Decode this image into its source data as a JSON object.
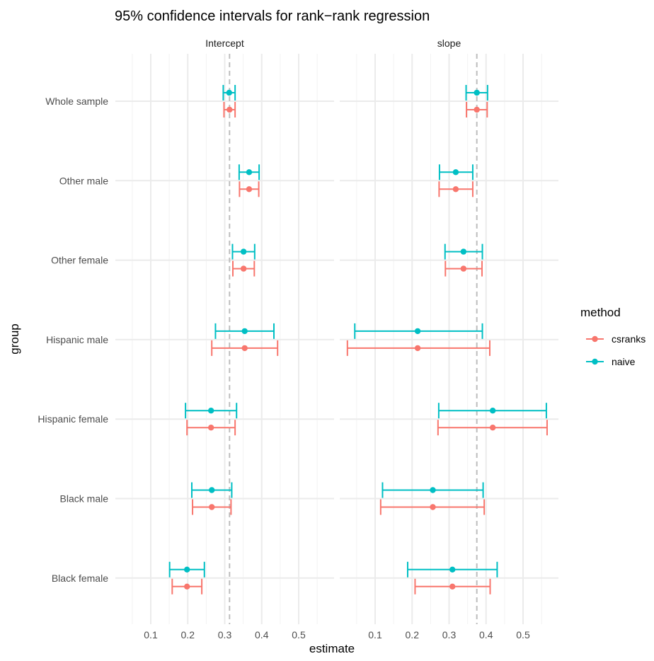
{
  "chart_data": {
    "type": "errorbar",
    "title": "95% confidence intervals for rank−rank regression",
    "xlabel": "estimate",
    "ylabel": "group",
    "groups": [
      "Whole sample",
      "Other male",
      "Other female",
      "Hispanic male",
      "Hispanic female",
      "Black male",
      "Black female"
    ],
    "x_ticks": [
      "0.1",
      "0.2",
      "0.3",
      "0.4",
      "0.5"
    ],
    "legend": {
      "title": "method",
      "placement": "right",
      "entries": [
        {
          "name": "csranks",
          "color": "#F8766D"
        },
        {
          "name": "naive",
          "color": "#00BFC4"
        }
      ]
    },
    "panels": [
      {
        "name": "Intercept",
        "xlim": [
          0.05,
          0.55
        ],
        "reference_line": 0.313,
        "series": [
          {
            "name": "csranks",
            "estimate": [
              0.313,
              0.366,
              0.351,
              0.354,
              0.263,
              0.265,
              0.198
            ],
            "lower": [
              0.298,
              0.34,
              0.322,
              0.265,
              0.198,
              0.213,
              0.158
            ],
            "upper": [
              0.328,
              0.392,
              0.38,
              0.443,
              0.328,
              0.317,
              0.238
            ]
          },
          {
            "name": "naive",
            "estimate": [
              0.312,
              0.366,
              0.351,
              0.354,
              0.263,
              0.265,
              0.198
            ],
            "lower": [
              0.296,
              0.339,
              0.321,
              0.275,
              0.194,
              0.211,
              0.151
            ],
            "upper": [
              0.328,
              0.393,
              0.381,
              0.433,
              0.332,
              0.319,
              0.245
            ]
          }
        ]
      },
      {
        "name": "slope",
        "xlim": [
          0.05,
          0.55
        ],
        "reference_line": 0.375,
        "series": [
          {
            "name": "csranks",
            "estimate": [
              0.375,
              0.318,
              0.339,
              0.215,
              0.418,
              0.256,
              0.309
            ],
            "lower": [
              0.347,
              0.273,
              0.29,
              0.025,
              0.27,
              0.115,
              0.208
            ],
            "upper": [
              0.403,
              0.364,
              0.389,
              0.41,
              0.565,
              0.395,
              0.411
            ]
          },
          {
            "name": "naive",
            "estimate": [
              0.375,
              0.318,
              0.339,
              0.215,
              0.418,
              0.256,
              0.309
            ],
            "lower": [
              0.346,
              0.274,
              0.289,
              0.045,
              0.272,
              0.12,
              0.188
            ],
            "upper": [
              0.404,
              0.364,
              0.39,
              0.39,
              0.563,
              0.392,
              0.43
            ]
          }
        ]
      }
    ]
  }
}
